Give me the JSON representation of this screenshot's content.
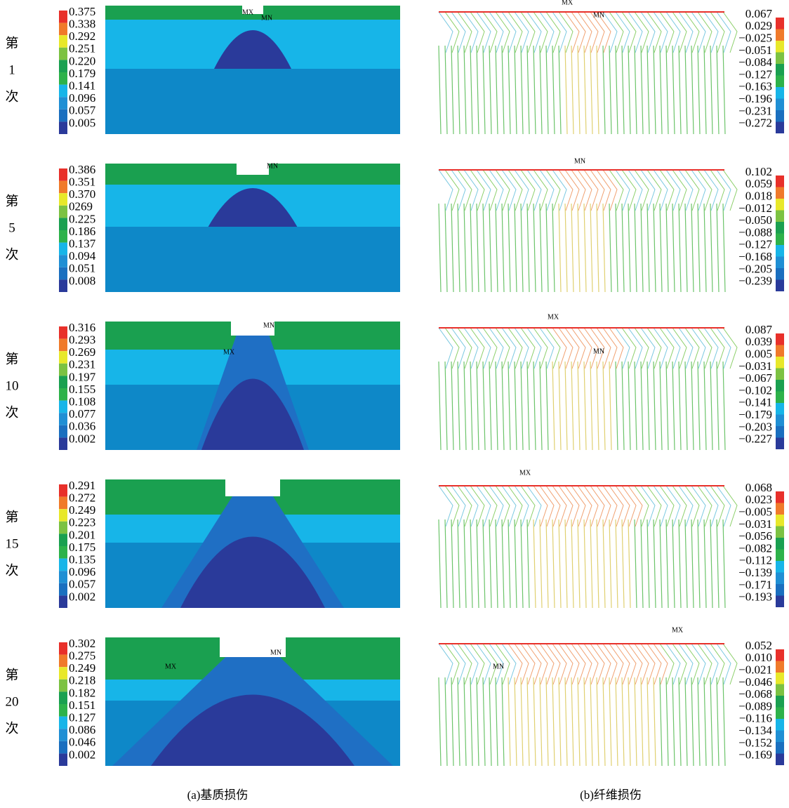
{
  "rows": [
    {
      "label": [
        "第",
        "1",
        "次"
      ],
      "matrix_legend": [
        "0.375",
        "0.338",
        "0.292",
        "0.251",
        "0.220",
        "0.179",
        "0.141",
        "0.096",
        "0.057",
        "0.005"
      ],
      "fiber_legend": [
        "0.067",
        "0.029",
        "−0.025",
        "−0.051",
        "−0.084",
        "−0.127",
        "−0.163",
        "−0.196",
        "−0.231",
        "−0.272"
      ],
      "matrix_annotations": [
        "MX",
        "MN"
      ],
      "fiber_annotations": [
        "MX",
        "MN"
      ]
    },
    {
      "label": [
        "第",
        "5",
        "次"
      ],
      "matrix_legend": [
        "0.386",
        "0.351",
        "0.370",
        "0269",
        "0.225",
        "0.186",
        "0.137",
        "0.094",
        "0.051",
        "0.008"
      ],
      "fiber_legend": [
        "0.102",
        "0.059",
        "0.018",
        "−0.012",
        "−0.050",
        "−0.088",
        "−0.127",
        "−0.168",
        "−0.205",
        "−0.239"
      ],
      "matrix_annotations": [
        "MN"
      ],
      "fiber_annotations": [
        "MN"
      ]
    },
    {
      "label": [
        "第",
        "10",
        "次"
      ],
      "matrix_legend": [
        "0.316",
        "0.293",
        "0.269",
        "0.231",
        "0.197",
        "0.155",
        "0.108",
        "0.077",
        "0.036",
        "0.002"
      ],
      "fiber_legend": [
        "0.087",
        "0.039",
        "0.005",
        "−0.031",
        "−0.067",
        "−0.102",
        "−0.141",
        "−0.179",
        "−0.203",
        "−0.227"
      ],
      "matrix_annotations": [
        "MN",
        "MX"
      ],
      "fiber_annotations": [
        "MX",
        "MN"
      ]
    },
    {
      "label": [
        "第",
        "15",
        "次"
      ],
      "matrix_legend": [
        "0.291",
        "0.272",
        "0.249",
        "0.223",
        "0.201",
        "0.175",
        "0.135",
        "0.096",
        "0.057",
        "0.002"
      ],
      "fiber_legend": [
        "0.068",
        "0.023",
        "−0.005",
        "−0.031",
        "−0.056",
        "−0.082",
        "−0.112",
        "−0.139",
        "−0.171",
        "−0.193"
      ],
      "matrix_annotations": [],
      "fiber_annotations": [
        "MX"
      ]
    },
    {
      "label": [
        "第",
        "20",
        "次"
      ],
      "matrix_legend": [
        "0.302",
        "0.275",
        "0.249",
        "0.218",
        "0.182",
        "0.151",
        "0.127",
        "0.086",
        "0.046",
        "0.002"
      ],
      "fiber_legend": [
        "0.052",
        "0.010",
        "−0.021",
        "−0.046",
        "−0.068",
        "−0.089",
        "−0.116",
        "−0.134",
        "−0.152",
        "−0.169"
      ],
      "matrix_annotations": [
        "MN",
        "MX"
      ],
      "fiber_annotations": [
        "MX",
        "MN"
      ]
    }
  ],
  "captions": [
    "(a)基质损伤",
    "(b)纤维损伤"
  ]
}
